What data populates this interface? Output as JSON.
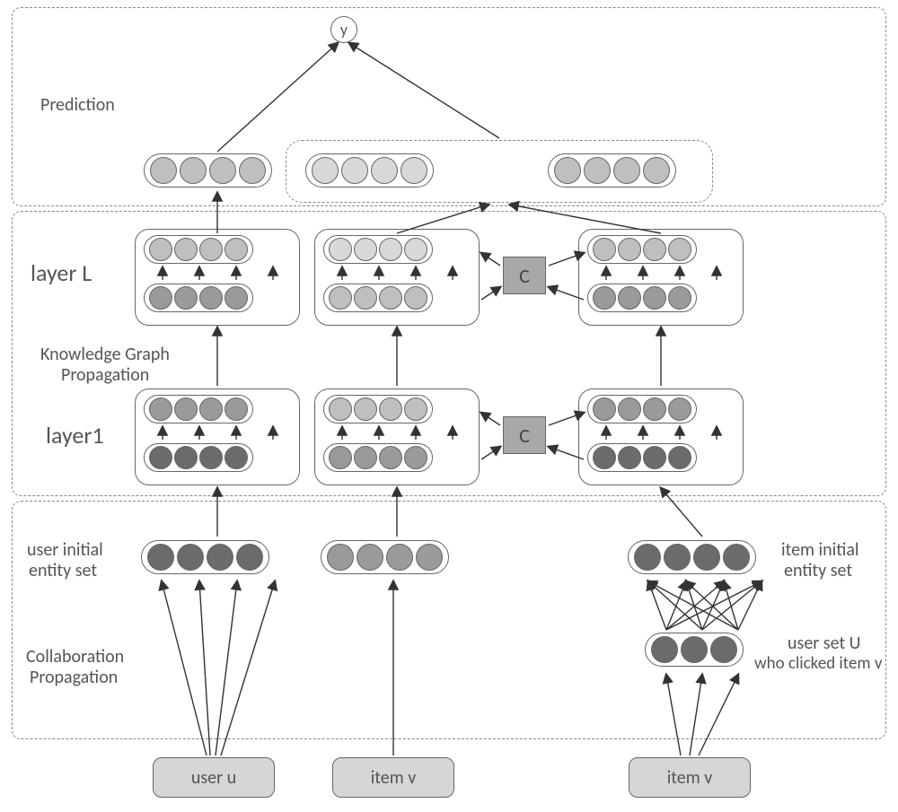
{
  "labels": {
    "prediction": "Prediction",
    "layerL": "layer L",
    "kgp1": "Knowledge Graph",
    "kgp2": "Propagation",
    "layer1": "layer1",
    "uinit1": "user initial",
    "uinit2": "entity set",
    "collab1": "Collaboration",
    "collab2": "Propagation",
    "iinit1": "item initial",
    "iinit2": "entity set",
    "uset1": "user set U",
    "uset2": "who clicked item v",
    "useru": "user u",
    "itemv": "item v",
    "y": "y",
    "C": "C"
  },
  "colors": {
    "dkGray": "#6b6b6b",
    "midGray": "#9a9a9a",
    "ltGray": "#bfbfbf",
    "vltGray": "#d8d8d8",
    "inputFill": "#d6d6d6",
    "cFill": "#a8a8a8",
    "border": "#666",
    "dash": "#888",
    "arrow": "#333"
  },
  "sizes": {
    "dot": 30,
    "dotSmall": 26
  },
  "fonts": {
    "label": 20,
    "title": 20
  }
}
